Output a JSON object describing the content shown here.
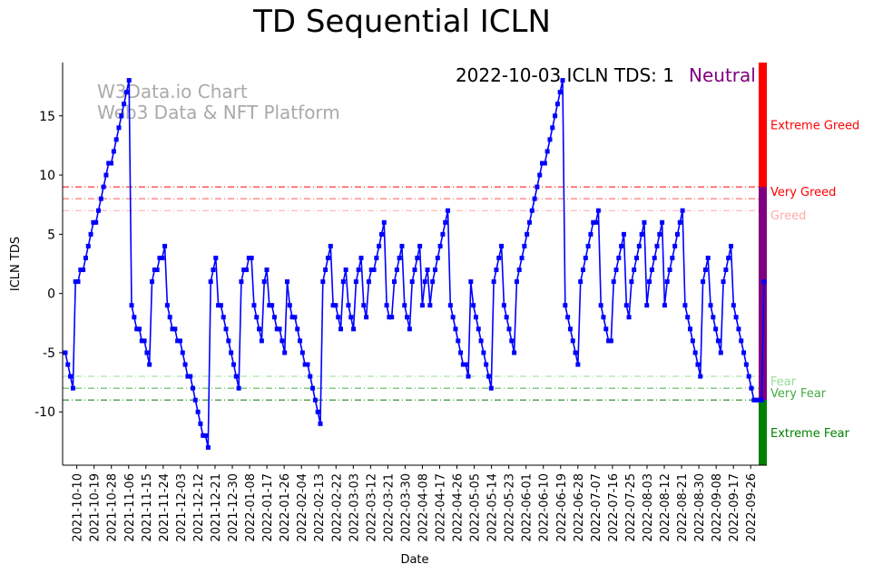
{
  "chart_data": {
    "type": "line",
    "title": "TD Sequential ICLN",
    "xlabel": "Date",
    "ylabel": "ICLN TDS",
    "ylim": [
      -14.5,
      19.5
    ],
    "yticks": [
      -10,
      -5,
      0,
      5,
      10,
      15
    ],
    "xticks": [
      "2021-10-10",
      "2021-10-19",
      "2021-10-28",
      "2021-11-06",
      "2021-11-15",
      "2021-11-24",
      "2021-12-03",
      "2021-12-12",
      "2021-12-21",
      "2021-12-30",
      "2022-01-08",
      "2022-01-17",
      "2022-01-26",
      "2022-02-04",
      "2022-02-13",
      "2022-02-22",
      "2022-03-03",
      "2022-03-12",
      "2022-03-21",
      "2022-03-30",
      "2022-04-08",
      "2022-04-17",
      "2022-04-26",
      "2022-05-05",
      "2022-05-14",
      "2022-05-23",
      "2022-06-01",
      "2022-06-10",
      "2022-06-19",
      "2022-06-28",
      "2022-07-07",
      "2022-07-16",
      "2022-07-25",
      "2022-08-03",
      "2022-08-12",
      "2022-08-21",
      "2022-08-30",
      "2022-09-08",
      "2022-09-17",
      "2022-09-26"
    ],
    "watermark": [
      "W3Data.io Chart",
      "Web3 Data & NFT Platform"
    ],
    "annotation": {
      "text": "2022-10-03 ICLN TDS: 1",
      "status": "Neutral",
      "status_color": "#800080"
    },
    "reference_lines": [
      {
        "y": 9,
        "label": "Very Greed",
        "color": "#ff0000"
      },
      {
        "y": 8,
        "label": "",
        "color": "#ff5555"
      },
      {
        "y": 7,
        "label": "Greed",
        "color": "#ffaaaa"
      },
      {
        "y": -7,
        "label": "Fear",
        "color": "#99dd99"
      },
      {
        "y": -8,
        "label": "Very Fear",
        "color": "#44aa44"
      },
      {
        "y": -9,
        "label": "",
        "color": "#007700"
      }
    ],
    "zones": [
      {
        "label": "Extreme Greed",
        "from": 9,
        "to": 19.5,
        "color": "#ff0000"
      },
      {
        "label": "",
        "from": -9,
        "to": 9,
        "color": "#800080"
      },
      {
        "label": "Extreme Fear",
        "from": -14.5,
        "to": -9,
        "color": "#008000"
      }
    ],
    "series": [
      {
        "color": "#0000ff",
        "x_start": "2021-10-04",
        "x_end": "2022-10-03",
        "values": [
          -5,
          -6,
          -7,
          -8,
          1,
          1,
          2,
          2,
          3,
          4,
          5,
          6,
          6,
          7,
          8,
          9,
          10,
          11,
          11,
          12,
          13,
          14,
          15,
          16,
          17,
          18,
          -1,
          -2,
          -3,
          -3,
          -4,
          -4,
          -5,
          -6,
          1,
          2,
          2,
          3,
          3,
          4,
          -1,
          -2,
          -3,
          -3,
          -4,
          -4,
          -5,
          -6,
          -7,
          -7,
          -8,
          -9,
          -10,
          -11,
          -12,
          -12,
          -13,
          1,
          2,
          3,
          -1,
          -1,
          -2,
          -3,
          -4,
          -5,
          -6,
          -7,
          -8,
          1,
          2,
          2,
          3,
          3,
          -1,
          -2,
          -3,
          -4,
          1,
          2,
          -1,
          -1,
          -2,
          -3,
          -3,
          -4,
          -5,
          1,
          -1,
          -2,
          -2,
          -3,
          -4,
          -5,
          -6,
          -6,
          -7,
          -8,
          -9,
          -10,
          -11,
          1,
          2,
          3,
          4,
          -1,
          -1,
          -2,
          -3,
          1,
          2,
          -1,
          -2,
          -3,
          1,
          2,
          3,
          -1,
          -2,
          1,
          2,
          2,
          3,
          4,
          5,
          6,
          -1,
          -2,
          -2,
          1,
          2,
          3,
          4,
          -1,
          -2,
          -3,
          1,
          2,
          3,
          4,
          -1,
          1,
          2,
          -1,
          1,
          2,
          3,
          4,
          5,
          6,
          7,
          -1,
          -2,
          -3,
          -4,
          -5,
          -6,
          -6,
          -7,
          1,
          -1,
          -2,
          -3,
          -4,
          -5,
          -6,
          -7,
          -8,
          1,
          2,
          3,
          4,
          -1,
          -2,
          -3,
          -4,
          -5,
          1,
          2,
          3,
          4,
          5,
          6,
          7,
          8,
          9,
          10,
          11,
          11,
          12,
          13,
          14,
          15,
          16,
          17,
          18,
          -1,
          -2,
          -3,
          -4,
          -5,
          -6,
          1,
          2,
          3,
          4,
          5,
          6,
          6,
          7,
          -1,
          -2,
          -3,
          -4,
          -4,
          1,
          2,
          3,
          4,
          5,
          -1,
          -2,
          1,
          2,
          3,
          4,
          5,
          6,
          -1,
          1,
          2,
          3,
          4,
          5,
          6,
          -1,
          1,
          2,
          3,
          4,
          5,
          6,
          7,
          -1,
          -2,
          -3,
          -4,
          -5,
          -6,
          -7,
          1,
          2,
          3,
          -1,
          -2,
          -3,
          -4,
          -5,
          1,
          2,
          3,
          4,
          -1,
          -2,
          -3,
          -4,
          -5,
          -6,
          -7,
          -8,
          -9,
          -9,
          -9,
          -9,
          1
        ]
      }
    ]
  }
}
